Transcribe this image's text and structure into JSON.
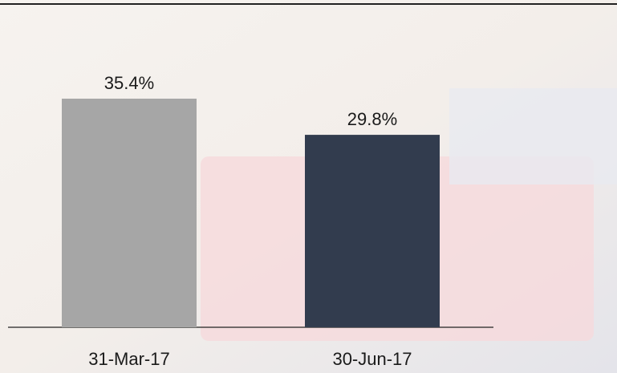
{
  "chart_data": {
    "type": "bar",
    "categories": [
      "31-Mar-17",
      "30-Jun-17"
    ],
    "values": [
      35.4,
      29.8
    ],
    "value_labels": [
      "35.4%",
      "29.8%"
    ],
    "colors": [
      "#a6a6a6",
      "#323c4e"
    ]
  }
}
